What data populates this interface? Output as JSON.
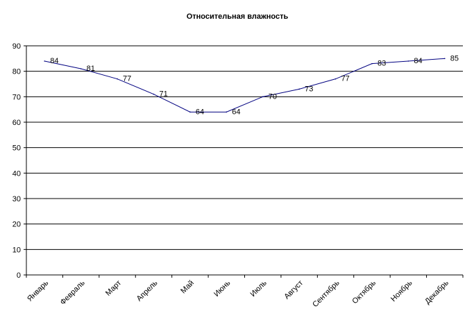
{
  "chart_data": {
    "type": "line",
    "title": "Относительная влажность",
    "categories": [
      "Январь",
      "Февраль",
      "Март",
      "Апрель",
      "Май",
      "Июнь",
      "Июль",
      "Август",
      "Сентябрь",
      "Октябрь",
      "Ноябрь",
      "Декабрь"
    ],
    "series": [
      {
        "values": [
          84,
          81,
          77,
          71,
          64,
          64,
          70,
          73,
          77,
          83,
          84,
          85
        ],
        "color": "#000080"
      }
    ],
    "xlabel": "",
    "ylabel": "",
    "ylim": [
      0,
      90
    ],
    "yticks": [
      0,
      10,
      20,
      30,
      40,
      50,
      60,
      70,
      80,
      90
    ],
    "grid": true,
    "legend": "none"
  }
}
